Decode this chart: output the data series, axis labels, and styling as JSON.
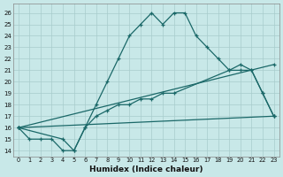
{
  "xlabel": "Humidex (Indice chaleur)",
  "bg_color": "#c8e8e8",
  "grid_color": "#a8cccc",
  "line_color": "#1a6868",
  "xlim": [
    -0.5,
    23.5
  ],
  "ylim": [
    13.5,
    26.8
  ],
  "xticks": [
    0,
    1,
    2,
    3,
    4,
    5,
    6,
    7,
    8,
    9,
    10,
    11,
    12,
    13,
    14,
    15,
    16,
    17,
    18,
    19,
    20,
    21,
    22,
    23
  ],
  "yticks": [
    14,
    15,
    16,
    17,
    18,
    19,
    20,
    21,
    22,
    23,
    24,
    25,
    26
  ],
  "line1_x": [
    0,
    1,
    2,
    3,
    4,
    5,
    6,
    7,
    8,
    9,
    10,
    11,
    12,
    13,
    14,
    15,
    16,
    17,
    18,
    19,
    20,
    21,
    22,
    23
  ],
  "line1_y": [
    16,
    15,
    15,
    15,
    14,
    14,
    16,
    18,
    20,
    22,
    24,
    25,
    26,
    25,
    26,
    26,
    24,
    23,
    22,
    21,
    21,
    21,
    19,
    17
  ],
  "line2_x": [
    0,
    23
  ],
  "line2_y": [
    16,
    17
  ],
  "line3_x": [
    0,
    23
  ],
  "line3_y": [
    16,
    21.5
  ],
  "line4_x": [
    0,
    4,
    5,
    6,
    7,
    8,
    9,
    10,
    11,
    12,
    13,
    14,
    19,
    20,
    21,
    22,
    23
  ],
  "line4_y": [
    16,
    15,
    14,
    16,
    17,
    17.5,
    18,
    18,
    18.5,
    18.5,
    19,
    19,
    21,
    21.5,
    21,
    19,
    17
  ]
}
